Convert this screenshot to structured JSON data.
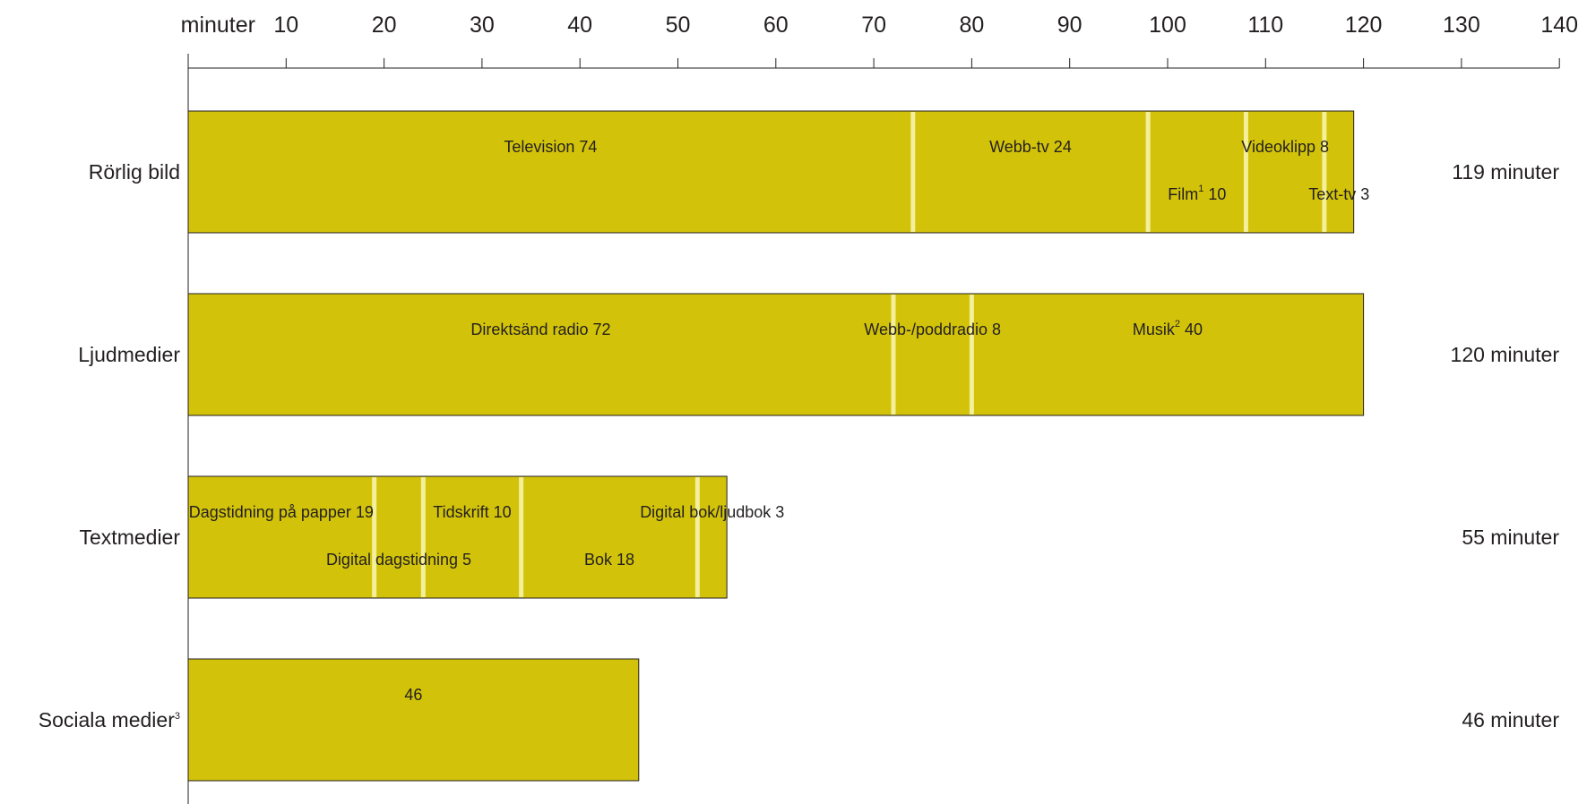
{
  "chart_data": {
    "type": "bar",
    "orientation": "horizontal",
    "stacked": true,
    "x_unit_label": "minuter",
    "xlim": [
      0,
      140
    ],
    "x_ticks": [
      10,
      20,
      30,
      40,
      50,
      60,
      70,
      80,
      90,
      100,
      110,
      120,
      130,
      140
    ],
    "grid": false,
    "legend": "none",
    "bar_color": "#d2c30a",
    "separator_color": "#f4ef9a",
    "categories": [
      {
        "label": "Rörlig bild",
        "label_sup": "",
        "total_label": "119 minuter",
        "segments": [
          {
            "label": "Television 74",
            "sup": "",
            "value": 74,
            "row": 0
          },
          {
            "label": "Webb-tv 24",
            "sup": "",
            "value": 24,
            "row": 0
          },
          {
            "label": "Film 10",
            "sup": "1",
            "value": 10,
            "row": 1
          },
          {
            "label": "Videoklipp 8",
            "sup": "",
            "value": 8,
            "row": 0
          },
          {
            "label": "Text-tv 3",
            "sup": "",
            "value": 3,
            "row": 1
          }
        ]
      },
      {
        "label": "Ljudmedier",
        "label_sup": "",
        "total_label": "120 minuter",
        "segments": [
          {
            "label": "Direktsänd radio 72",
            "sup": "",
            "value": 72,
            "row": 0
          },
          {
            "label": "Webb-/poddradio 8",
            "sup": "",
            "value": 8,
            "row": 0
          },
          {
            "label": "Musik 40",
            "sup": "2",
            "value": 40,
            "row": 0
          }
        ]
      },
      {
        "label": "Textmedier",
        "label_sup": "",
        "total_label": "55 minuter",
        "segments": [
          {
            "label": "Dagstidning på papper 19",
            "sup": "",
            "value": 19,
            "row": 0
          },
          {
            "label": "Digital dagstidning 5",
            "sup": "",
            "value": 5,
            "row": 1
          },
          {
            "label": "Tidskrift 10",
            "sup": "",
            "value": 10,
            "row": 0
          },
          {
            "label": "Bok 18",
            "sup": "",
            "value": 18,
            "row": 1
          },
          {
            "label": "Digital bok/ljudbok 3",
            "sup": "",
            "value": 3,
            "row": 0
          }
        ]
      },
      {
        "label": "Sociala medier",
        "label_sup": "3",
        "total_label": "46 minuter",
        "segments": [
          {
            "label": "46",
            "sup": "",
            "value": 46,
            "row": 0
          }
        ]
      }
    ]
  }
}
